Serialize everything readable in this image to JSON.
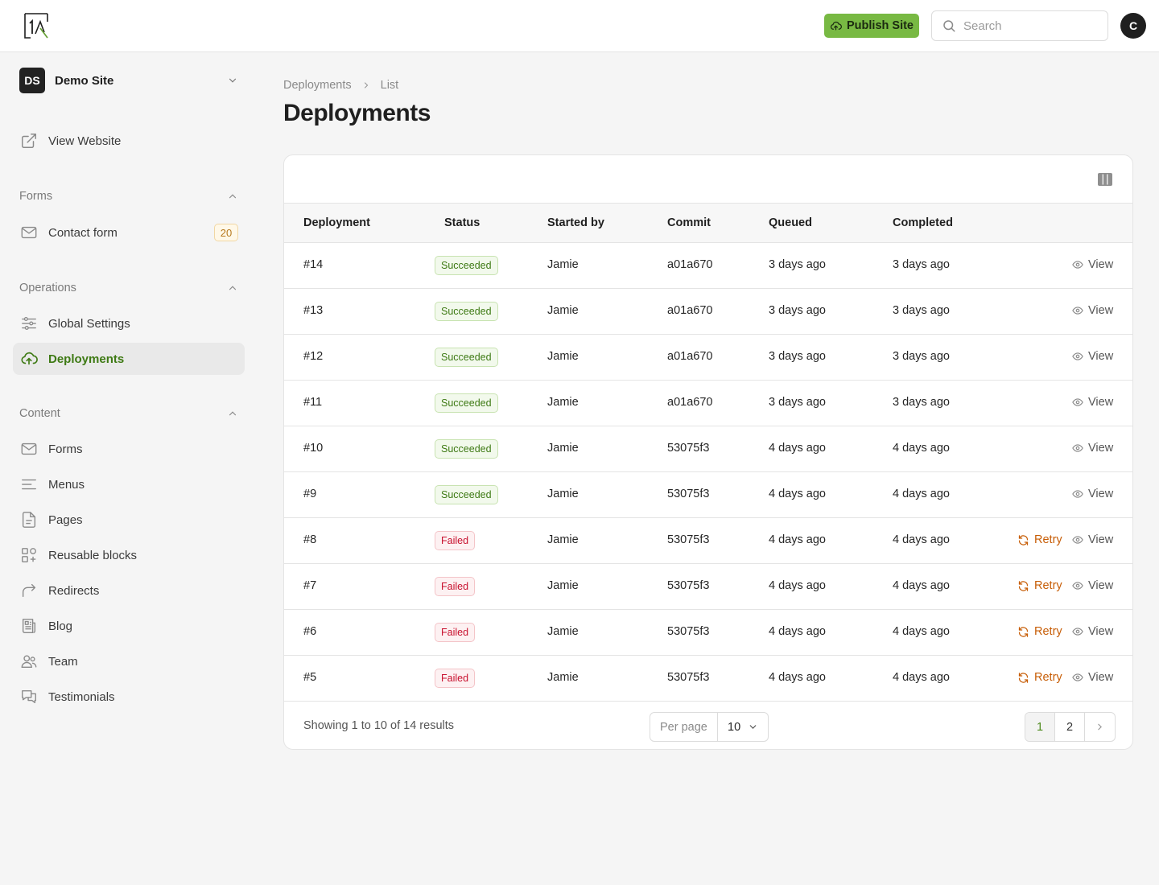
{
  "topbar": {
    "publish_label": "Publish Site",
    "search_placeholder": "Search",
    "avatar_initial": "C"
  },
  "sidebar": {
    "site": {
      "initials": "DS",
      "name": "Demo Site"
    },
    "view_website": "View Website",
    "groups": [
      {
        "label": "Forms",
        "items": [
          {
            "label": "Contact form",
            "icon": "envelope-icon",
            "badge": "20"
          }
        ]
      },
      {
        "label": "Operations",
        "items": [
          {
            "label": "Global Settings",
            "icon": "sliders-icon"
          },
          {
            "label": "Deployments",
            "icon": "cloud-upload-icon",
            "active": true
          }
        ]
      },
      {
        "label": "Content",
        "items": [
          {
            "label": "Forms",
            "icon": "envelope-icon"
          },
          {
            "label": "Menus",
            "icon": "menu-lines-icon"
          },
          {
            "label": "Pages",
            "icon": "document-icon"
          },
          {
            "label": "Reusable blocks",
            "icon": "blocks-icon"
          },
          {
            "label": "Redirects",
            "icon": "redirect-arrow-icon"
          },
          {
            "label": "Blog",
            "icon": "newspaper-icon"
          },
          {
            "label": "Team",
            "icon": "users-icon"
          },
          {
            "label": "Testimonials",
            "icon": "chat-bubbles-icon"
          }
        ]
      }
    ]
  },
  "breadcrumb": {
    "parent": "Deployments",
    "current": "List"
  },
  "page_title": "Deployments",
  "table": {
    "columns": [
      "Deployment",
      "Status",
      "Started by",
      "Commit",
      "Queued",
      "Completed"
    ],
    "view_label": "View",
    "retry_label": "Retry",
    "rows": [
      {
        "id": "#14",
        "status": "Succeeded",
        "started_by": "Jamie",
        "commit": "a01a670",
        "queued": "3 days ago",
        "completed": "3 days ago"
      },
      {
        "id": "#13",
        "status": "Succeeded",
        "started_by": "Jamie",
        "commit": "a01a670",
        "queued": "3 days ago",
        "completed": "3 days ago"
      },
      {
        "id": "#12",
        "status": "Succeeded",
        "started_by": "Jamie",
        "commit": "a01a670",
        "queued": "3 days ago",
        "completed": "3 days ago"
      },
      {
        "id": "#11",
        "status": "Succeeded",
        "started_by": "Jamie",
        "commit": "a01a670",
        "queued": "3 days ago",
        "completed": "3 days ago"
      },
      {
        "id": "#10",
        "status": "Succeeded",
        "started_by": "Jamie",
        "commit": "53075f3",
        "queued": "4 days ago",
        "completed": "4 days ago"
      },
      {
        "id": "#9",
        "status": "Succeeded",
        "started_by": "Jamie",
        "commit": "53075f3",
        "queued": "4 days ago",
        "completed": "4 days ago"
      },
      {
        "id": "#8",
        "status": "Failed",
        "started_by": "Jamie",
        "commit": "53075f3",
        "queued": "4 days ago",
        "completed": "4 days ago"
      },
      {
        "id": "#7",
        "status": "Failed",
        "started_by": "Jamie",
        "commit": "53075f3",
        "queued": "4 days ago",
        "completed": "4 days ago"
      },
      {
        "id": "#6",
        "status": "Failed",
        "started_by": "Jamie",
        "commit": "53075f3",
        "queued": "4 days ago",
        "completed": "4 days ago"
      },
      {
        "id": "#5",
        "status": "Failed",
        "started_by": "Jamie",
        "commit": "53075f3",
        "queued": "4 days ago",
        "completed": "4 days ago"
      }
    ]
  },
  "footer": {
    "showing": "Showing 1 to 10 of 14 results",
    "per_page_label": "Per page",
    "per_page_value": "10",
    "pages": [
      "1",
      "2"
    ],
    "current_page": "1"
  },
  "colors": {
    "accent": "#78b943",
    "active_text": "#3e7a14",
    "success": "#3e7a14",
    "danger": "#c8102e",
    "retry": "#c75d06",
    "badge": "#b7791f"
  }
}
